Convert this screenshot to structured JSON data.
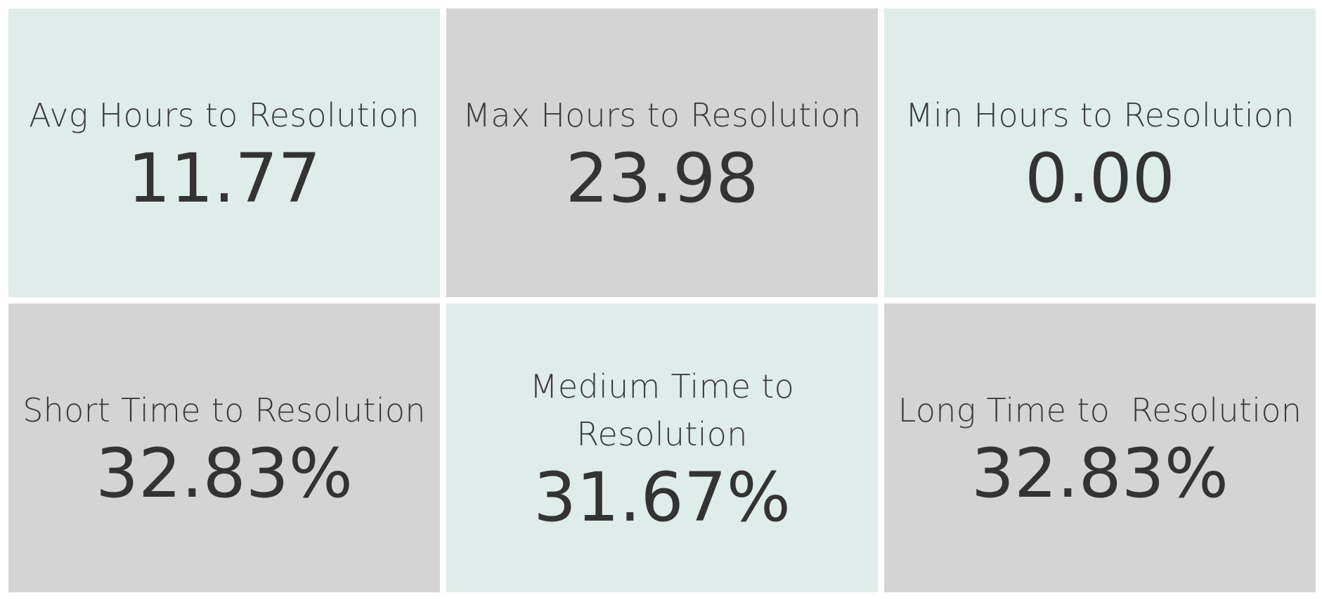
{
  "tiles": [
    {
      "label": "Avg Hours to Resolution",
      "value": "11.77",
      "bg": "#dfedea"
    },
    {
      "label": "Max Hours to Resolution",
      "value": "23.98",
      "bg": "#d4d4d4"
    },
    {
      "label": "Min Hours to Resolution",
      "value": "0.00",
      "bg": "#dfedea"
    },
    {
      "label": "Short Time to Resolution",
      "value": "32.83%",
      "bg": "#d4d4d4"
    },
    {
      "label_line1": "Medium Time to",
      "label_line2": "Resolution",
      "value": "31.67%",
      "bg": "#dfedea"
    },
    {
      "label": "Long Time to  Resolution",
      "value": "32.83%",
      "bg": "#d4d4d4"
    }
  ]
}
